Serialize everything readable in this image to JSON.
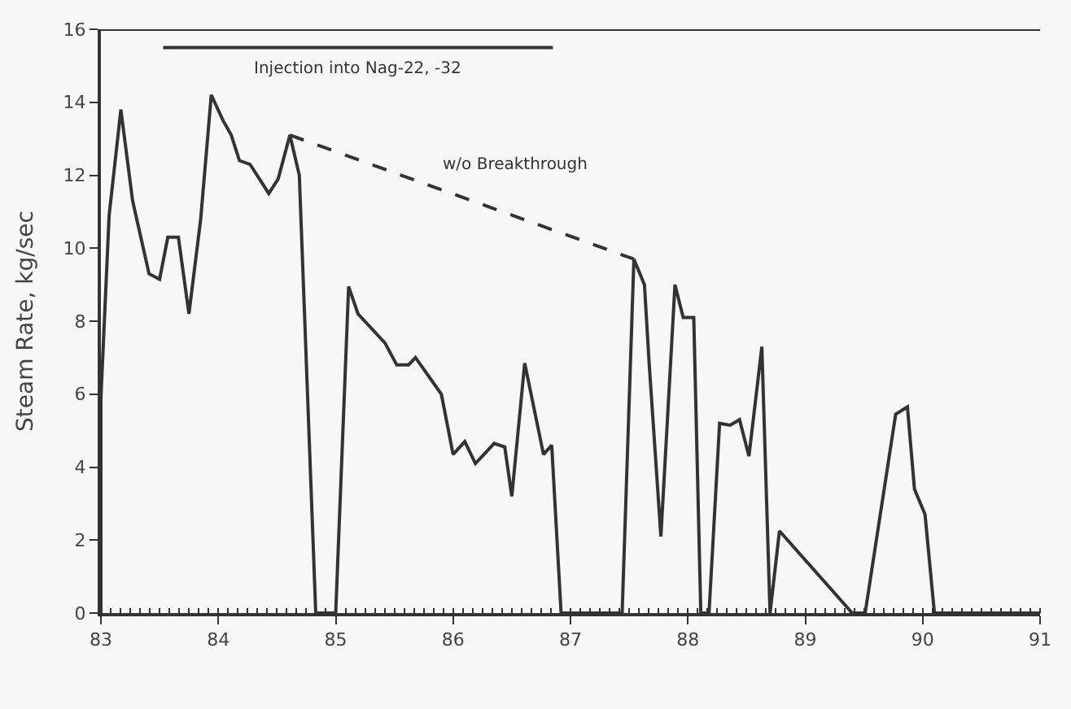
{
  "chart_data": {
    "type": "line",
    "ylabel": "Steam Rate, kg/sec",
    "xlim": [
      83,
      91
    ],
    "xticks": [
      83,
      84,
      85,
      86,
      87,
      88,
      89,
      90,
      91
    ],
    "ylim": [
      0,
      16
    ],
    "yticks": [
      0,
      2,
      4,
      6,
      8,
      10,
      12,
      14,
      16
    ],
    "grid": false,
    "legend": false,
    "marker": "none",
    "series": [
      {
        "color": "#333333",
        "line_style": "solid",
        "x": [
          83.0,
          83.0,
          83.07,
          83.17,
          83.27,
          83.41,
          83.5,
          83.57,
          83.66,
          83.75,
          83.85,
          83.94,
          84.04,
          84.11,
          84.18,
          84.27,
          84.43,
          84.51,
          84.61,
          84.69,
          84.83,
          85.0,
          85.11,
          85.19,
          85.42,
          85.52,
          85.62,
          85.68,
          85.9,
          86.0,
          86.1,
          86.19,
          86.35,
          86.44,
          86.5,
          86.61,
          86.77,
          86.84,
          86.92,
          87.44,
          87.54,
          87.63,
          87.67,
          87.77,
          87.89,
          87.96,
          88.05,
          88.11,
          88.18,
          88.27,
          88.36,
          88.44,
          88.52,
          88.59,
          88.63,
          88.7,
          88.78,
          89.4,
          89.51,
          89.77,
          89.87,
          89.93,
          90.02,
          90.1,
          91.0
        ],
        "values": [
          0,
          5.9,
          10.9,
          13.8,
          11.3,
          9.3,
          9.15,
          10.3,
          10.3,
          8.2,
          10.8,
          14.2,
          13.5,
          13.1,
          12.4,
          12.3,
          11.5,
          11.9,
          13.1,
          12.0,
          0,
          0,
          8.95,
          8.2,
          7.4,
          6.8,
          6.8,
          7.0,
          6.0,
          4.35,
          4.7,
          4.1,
          4.65,
          4.55,
          3.2,
          6.85,
          4.35,
          4.6,
          0,
          0,
          9.7,
          9.0,
          6.85,
          2.1,
          9.0,
          8.1,
          8.1,
          0,
          0,
          5.2,
          5.15,
          5.3,
          4.3,
          6.2,
          7.3,
          0,
          2.25,
          0,
          0,
          5.45,
          5.65,
          3.4,
          2.7,
          0,
          0
        ]
      },
      {
        "name": "w/o Breakthrough",
        "color": "#333333",
        "line_style": "dashed",
        "x": [
          84.61,
          87.54
        ],
        "values": [
          13.1,
          9.7
        ]
      },
      {
        "name": "Injection into Nag-22, -32",
        "color": "#333333",
        "line_style": "solid",
        "x": [
          83.53,
          86.85
        ],
        "values": [
          15.5,
          15.5
        ]
      }
    ]
  }
}
